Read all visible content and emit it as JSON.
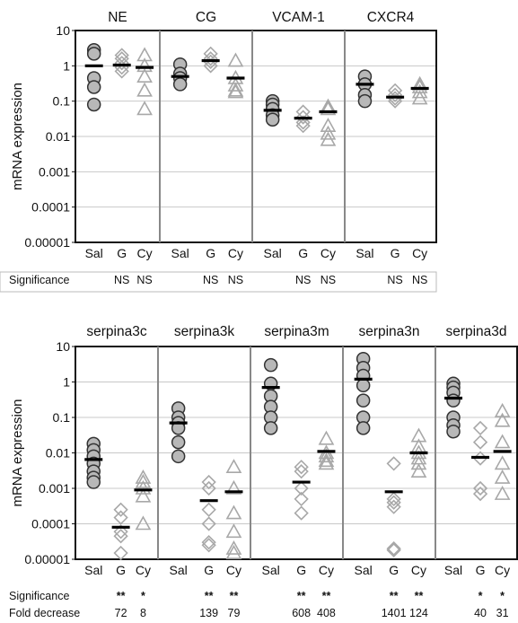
{
  "styles": {
    "sal_fill": "#b8b8b8",
    "sal_stroke": "#333333",
    "treat_stroke": "#a8a8a8",
    "mean_color": "#000000",
    "grid_color": "#c8c8c8",
    "axis_color": "#111111"
  },
  "chart_data": [
    {
      "type": "scatter",
      "ylabel": "mRNA expression",
      "yscale": "log",
      "ylim": [
        1e-05,
        10
      ],
      "yticks": [
        "10",
        "1",
        "0.1",
        "0.01",
        "0.001",
        "0.0001",
        "0.00001"
      ],
      "categories": [
        "Sal",
        "G",
        "Cy"
      ],
      "markers": {
        "Sal": "circle",
        "G": "diamond",
        "Cy": "triangle"
      },
      "row_labels": {
        "significance": "Significance"
      },
      "panels": [
        {
          "title": "NE",
          "points": {
            "Sal": [
              2.8,
              2.2,
              0.45,
              0.25,
              0.08
            ],
            "G": [
              2.0,
              1.6,
              1.2,
              0.9,
              0.7
            ],
            "Cy": [
              2.0,
              1.0,
              0.5,
              0.2,
              0.06
            ]
          },
          "means": {
            "Sal": 1.0,
            "G": 1.05,
            "Cy": 0.9
          },
          "significance": {
            "G": "NS",
            "Cy": "NS"
          }
        },
        {
          "title": "CG",
          "points": {
            "Sal": [
              1.1,
              0.6,
              0.45,
              0.3
            ],
            "G": [
              2.2,
              1.6,
              1.3,
              1.0
            ],
            "Cy": [
              1.4,
              0.45,
              0.28,
              0.2,
              0.18
            ]
          },
          "means": {
            "Sal": 0.5,
            "G": 1.4,
            "Cy": 0.45
          },
          "significance": {
            "G": "NS",
            "Cy": "NS"
          }
        },
        {
          "title": "VCAM-1",
          "points": {
            "Sal": [
              0.1,
              0.08,
              0.06,
              0.04,
              0.03
            ],
            "G": [
              0.05,
              0.035,
              0.025,
              0.02
            ],
            "Cy": [
              0.07,
              0.06,
              0.02,
              0.012,
              0.008
            ]
          },
          "means": {
            "Sal": 0.055,
            "G": 0.033,
            "Cy": 0.05
          },
          "significance": {
            "G": "NS",
            "Cy": "NS"
          }
        },
        {
          "title": "CXCR4",
          "points": {
            "Sal": [
              0.5,
              0.3,
              0.15,
              0.1
            ],
            "G": [
              0.2,
              0.15,
              0.12,
              0.1
            ],
            "Cy": [
              0.3,
              0.25,
              0.18,
              0.12
            ]
          },
          "means": {
            "Sal": 0.3,
            "G": 0.13,
            "Cy": 0.23
          },
          "significance": {
            "G": "NS",
            "Cy": "NS"
          }
        }
      ]
    },
    {
      "type": "scatter",
      "ylabel": "mRNA expression",
      "yscale": "log",
      "ylim": [
        1e-05,
        10
      ],
      "yticks": [
        "10",
        "1",
        "0.1",
        "0.01",
        "0.001",
        "0.0001",
        "0.00001"
      ],
      "categories": [
        "Sal",
        "G",
        "Cy"
      ],
      "markers": {
        "Sal": "circle",
        "G": "diamond",
        "Cy": "triangle"
      },
      "row_labels": {
        "significance": "Significance",
        "fold": "Fold decrease"
      },
      "panels": [
        {
          "title": "serpina3c",
          "points": {
            "Sal": [
              0.018,
              0.012,
              0.008,
              0.005,
              0.003,
              0.002,
              0.0015
            ],
            "G": [
              0.00025,
              0.00015,
              6e-05,
              4.5e-05,
              1.5e-05
            ],
            "Cy": [
              0.002,
              0.0015,
              0.001,
              0.0006,
              0.0001
            ]
          },
          "means": {
            "Sal": 0.0065,
            "G": 8e-05,
            "Cy": 0.0009
          },
          "significance": {
            "G": "**",
            "Cy": "*"
          },
          "fold_decrease": {
            "G": "72",
            "Cy": "8"
          }
        },
        {
          "title": "serpina3k",
          "points": {
            "Sal": [
              0.18,
              0.1,
              0.07,
              0.05,
              0.02,
              0.008
            ],
            "G": [
              0.0015,
              0.001,
              0.00025,
              0.0001,
              3e-05,
              2.5e-05
            ],
            "Cy": [
              0.004,
              0.001,
              0.0002,
              6e-05,
              2e-05,
              1.5e-05
            ]
          },
          "means": {
            "Sal": 0.07,
            "G": 0.00045,
            "Cy": 0.0008
          },
          "significance": {
            "G": "**",
            "Cy": "**"
          },
          "fold_decrease": {
            "G": "139",
            "Cy": "79"
          }
        },
        {
          "title": "serpina3m",
          "points": {
            "Sal": [
              3.0,
              0.9,
              0.4,
              0.2,
              0.1,
              0.05
            ],
            "G": [
              0.004,
              0.003,
              0.001,
              0.0005,
              0.0002
            ],
            "Cy": [
              0.025,
              0.01,
              0.008,
              0.006,
              0.005
            ]
          },
          "means": {
            "Sal": 0.7,
            "G": 0.0015,
            "Cy": 0.011
          },
          "significance": {
            "G": "**",
            "Cy": "**"
          },
          "fold_decrease": {
            "G": "608",
            "Cy": "408"
          }
        },
        {
          "title": "serpina3n",
          "points": {
            "Sal": [
              4.5,
              2.5,
              1.5,
              0.8,
              0.3,
              0.1,
              0.05
            ],
            "G": [
              0.005,
              0.0005,
              0.0004,
              0.0003,
              2e-05,
              1.8e-05
            ],
            "Cy": [
              0.03,
              0.015,
              0.01,
              0.007,
              0.005,
              0.003
            ]
          },
          "means": {
            "Sal": 1.2,
            "G": 0.0008,
            "Cy": 0.01
          },
          "significance": {
            "G": "**",
            "Cy": "**"
          },
          "fold_decrease": {
            "G": "1401",
            "Cy": "124"
          }
        },
        {
          "title": "serpina3d",
          "points": {
            "Sal": [
              0.9,
              0.7,
              0.5,
              0.3,
              0.1,
              0.06,
              0.04
            ],
            "G": [
              0.05,
              0.02,
              0.007,
              0.001,
              0.0007
            ],
            "Cy": [
              0.15,
              0.08,
              0.02,
              0.005,
              0.002,
              0.0007
            ]
          },
          "means": {
            "Sal": 0.35,
            "G": 0.0075,
            "Cy": 0.011
          },
          "significance": {
            "G": "*",
            "Cy": "*"
          },
          "fold_decrease": {
            "G": "40",
            "Cy": "31"
          }
        }
      ]
    }
  ]
}
